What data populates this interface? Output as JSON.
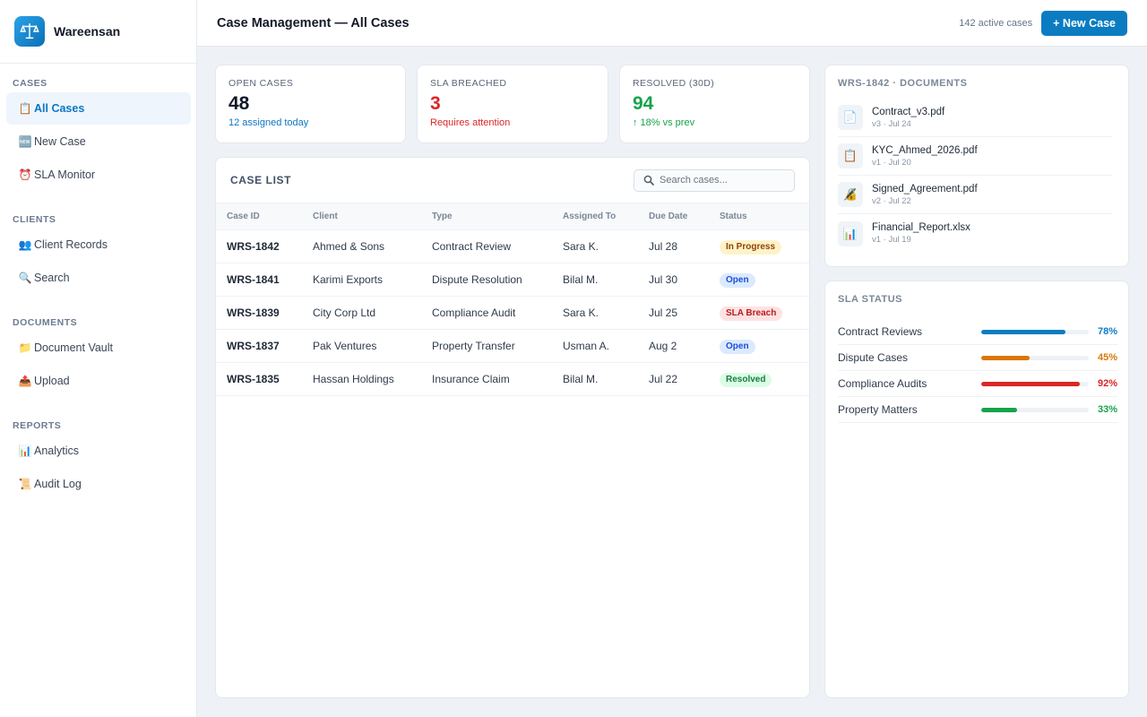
{
  "app": {
    "name": "Wareensan"
  },
  "sidebar": {
    "sections": [
      {
        "heading": "CASES",
        "items": [
          {
            "icon": "📋",
            "icon_name": "clipboard-icon",
            "label": "All Cases",
            "active": true
          },
          {
            "icon": "🆕",
            "icon_name": "new-icon",
            "label": "New Case",
            "active": false
          },
          {
            "icon": "⏰",
            "icon_name": "alarm-clock-icon",
            "label": "SLA Monitor",
            "active": false
          }
        ]
      },
      {
        "heading": "CLIENTS",
        "items": [
          {
            "icon": "👥",
            "icon_name": "people-icon",
            "label": "Client Records",
            "active": false
          },
          {
            "icon": "🔍",
            "icon_name": "search-icon",
            "label": "Search",
            "active": false
          }
        ]
      },
      {
        "heading": "DOCUMENTS",
        "items": [
          {
            "icon": "📁",
            "icon_name": "folder-icon",
            "label": "Document Vault",
            "active": false
          },
          {
            "icon": "📤",
            "icon_name": "upload-icon",
            "label": "Upload",
            "active": false
          }
        ]
      },
      {
        "heading": "REPORTS",
        "items": [
          {
            "icon": "📊",
            "icon_name": "bar-chart-icon",
            "label": "Analytics",
            "active": false
          },
          {
            "icon": "📜",
            "icon_name": "scroll-icon",
            "label": "Audit Log",
            "active": false
          }
        ]
      }
    ]
  },
  "header": {
    "title": "Case Management — All Cases",
    "active_cases": "142 active cases",
    "new_case_label": "+ New Case"
  },
  "stats": [
    {
      "label": "OPEN CASES",
      "value": "48",
      "sub": "12 assigned today",
      "value_color": "#111827",
      "sub_color": "#0b76c5"
    },
    {
      "label": "SLA BREACHED",
      "value": "3",
      "sub": "Requires attention",
      "value_color": "#dc2626",
      "sub_color": "#dc2626"
    },
    {
      "label": "RESOLVED (30D)",
      "value": "94",
      "sub": "↑ 18% vs prev",
      "value_color": "#16a34a",
      "sub_color": "#16a34a"
    }
  ],
  "case_list": {
    "title": "CASE LIST",
    "search_placeholder": "Search cases...",
    "columns": [
      "Case ID",
      "Client",
      "Type",
      "Assigned To",
      "Due Date",
      "Status"
    ],
    "rows": [
      {
        "id": "WRS-1842",
        "client": "Ahmed & Sons",
        "type": "Contract Review",
        "assigned": "Sara K.",
        "due": "Jul 28",
        "status": "In Progress",
        "status_bg": "#fef3c7",
        "status_fg": "#92400e"
      },
      {
        "id": "WRS-1841",
        "client": "Karimi Exports",
        "type": "Dispute Resolution",
        "assigned": "Bilal M.",
        "due": "Jul 30",
        "status": "Open",
        "status_bg": "#dbeafe",
        "status_fg": "#1d4ed8"
      },
      {
        "id": "WRS-1839",
        "client": "City Corp Ltd",
        "type": "Compliance Audit",
        "assigned": "Sara K.",
        "due": "Jul 25",
        "status": "SLA Breach",
        "status_bg": "#fee2e2",
        "status_fg": "#b91c1c"
      },
      {
        "id": "WRS-1837",
        "client": "Pak Ventures",
        "type": "Property Transfer",
        "assigned": "Usman A.",
        "due": "Aug 2",
        "status": "Open",
        "status_bg": "#dbeafe",
        "status_fg": "#1d4ed8"
      },
      {
        "id": "WRS-1835",
        "client": "Hassan Holdings",
        "type": "Insurance Claim",
        "assigned": "Bilal M.",
        "due": "Jul 22",
        "status": "Resolved",
        "status_bg": "#dcfce7",
        "status_fg": "#15803d"
      }
    ]
  },
  "documents": {
    "title": "WRS-1842 · DOCUMENTS",
    "items": [
      {
        "icon": "📄",
        "icon_name": "document-icon",
        "name": "Contract_v3.pdf",
        "meta": "v3 · Jul 24"
      },
      {
        "icon": "📋",
        "icon_name": "clipboard-icon",
        "name": "KYC_Ahmed_2026.pdf",
        "meta": "v1 · Jul 20"
      },
      {
        "icon": "🔏",
        "icon_name": "lock-icon",
        "name": "Signed_Agreement.pdf",
        "meta": "v2 · Jul 22"
      },
      {
        "icon": "📊",
        "icon_name": "bar-chart-icon",
        "name": "Financial_Report.xlsx",
        "meta": "v1 · Jul 19"
      }
    ]
  },
  "sla_status": {
    "title": "SLA STATUS",
    "items": [
      {
        "name": "Contract Reviews",
        "percent": 78,
        "label": "78%",
        "color": "#0b7cc2"
      },
      {
        "name": "Dispute Cases",
        "percent": 45,
        "label": "45%",
        "color": "#d97706"
      },
      {
        "name": "Compliance Audits",
        "percent": 92,
        "label": "92%",
        "color": "#dc2626"
      },
      {
        "name": "Property Matters",
        "percent": 33,
        "label": "33%",
        "color": "#16a34a"
      }
    ]
  }
}
